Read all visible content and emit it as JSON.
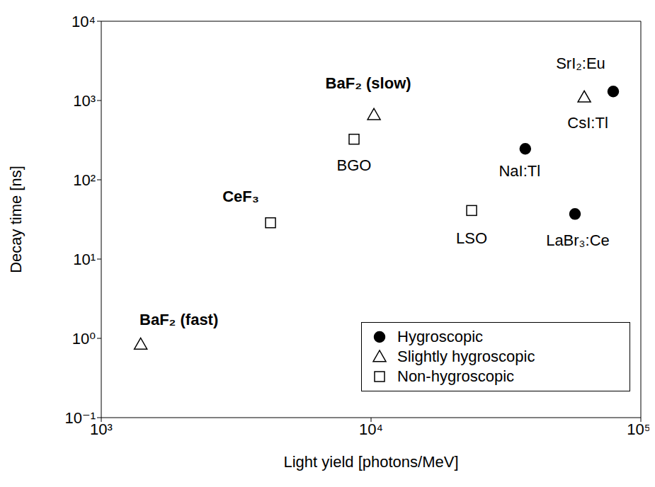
{
  "chart_data": {
    "type": "scatter",
    "xlabel": "Light yield [photons/MeV]",
    "ylabel": "Decay time [ns]",
    "log": true,
    "grid": false,
    "legend": "lower right",
    "xlim": [
      1000,
      100000
    ],
    "ylim": [
      0.1,
      10000
    ],
    "xticks": [
      {
        "value": 1000,
        "label": "10³"
      },
      {
        "value": 10000,
        "label": "10⁴"
      },
      {
        "value": 100000,
        "label": "10⁵"
      }
    ],
    "yticks": [
      {
        "value": 0.1,
        "label": "10⁻¹"
      },
      {
        "value": 1,
        "label": "10⁰"
      },
      {
        "value": 10,
        "label": "10¹"
      },
      {
        "value": 100,
        "label": "10²"
      },
      {
        "value": 1000,
        "label": "10³"
      },
      {
        "value": 10000,
        "label": "10⁴"
      }
    ],
    "series": [
      {
        "name": "Hygroscopic",
        "marker": "filled_circle",
        "color": "#000000",
        "x": [
          37300,
          57000,
          79000
        ],
        "values": [
          246,
          37,
          1300
        ],
        "labels": [
          "NaI:Tl",
          "LaBr₃:Ce",
          "SrI₂:Eu"
        ]
      },
      {
        "name": "Slightly hygroscopic",
        "marker": "open_triangle",
        "color": "#000000",
        "x": [
          1400,
          10250,
          61700
        ],
        "values": [
          0.84,
          660,
          1100
        ],
        "labels": [
          "BaF₂ (fast)",
          "BaF₂ (slow)",
          "CsI:Tl"
        ]
      },
      {
        "name": "Non-hygroscopic",
        "marker": "open_square",
        "color": "#000000",
        "x": [
          4240,
          8650,
          23600
        ],
        "values": [
          28.7,
          325,
          41
        ],
        "labels": [
          "CeF₃",
          "BGO",
          "LSO"
        ]
      }
    ]
  }
}
